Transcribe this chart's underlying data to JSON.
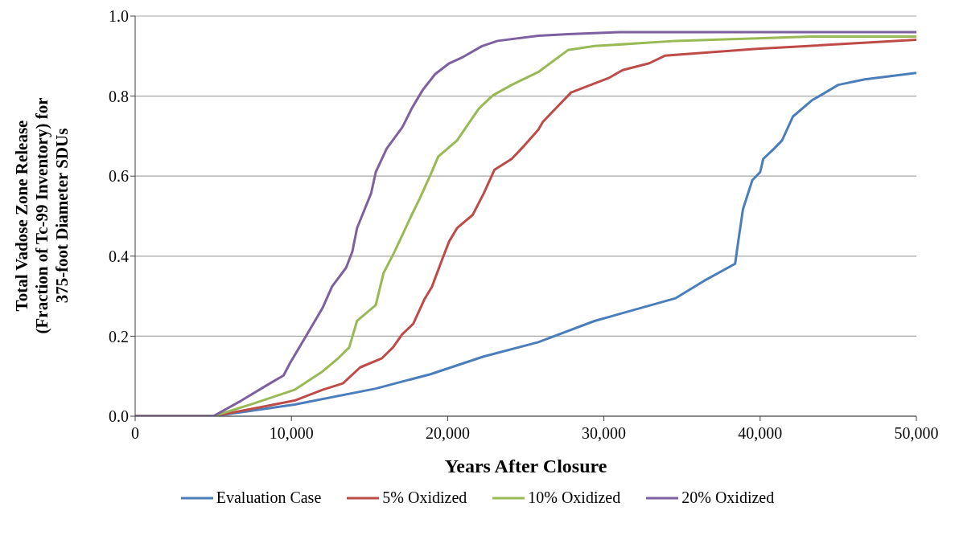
{
  "chart_data": {
    "type": "line",
    "xlabel": "Years After Closure",
    "ylabel": "Total Vadose Zone Release\n(Fraction of Tc-99 Inventory) for\n375-foot Diameter SDUs",
    "xlim": [
      0,
      50000
    ],
    "xticks": [
      0,
      {
        "value": 10000,
        "label": "10,000"
      },
      {
        "value": 20000,
        "label": "20,000"
      },
      {
        "value": 30000,
        "label": "30,000"
      },
      {
        "value": 40000,
        "label": "40,000"
      },
      {
        "value": 50000,
        "label": "50,000"
      }
    ],
    "ylim": [
      0,
      1
    ],
    "yticks": [
      {
        "value": 0,
        "label": "0.0"
      },
      {
        "value": 0.2,
        "label": "0.2"
      },
      {
        "value": 0.4,
        "label": "0.4"
      },
      {
        "value": 0.6,
        "label": "0.6"
      },
      {
        "value": 0.8,
        "label": "0.8"
      },
      {
        "value": 1,
        "label": "1.0"
      }
    ],
    "grid": "y",
    "legend": "bottom",
    "marker": "none",
    "line_style": "solid",
    "series": [
      {
        "name": "Evaluation Case",
        "color": "#4a7ebb",
        "x": [
          0,
          5000,
          10200,
          15400,
          18900,
          22300,
          25800,
          29400,
          34600,
          36400,
          38400,
          38600,
          38900,
          39500,
          40000,
          40200,
          40900,
          41400,
          42100,
          43300,
          45000,
          46700,
          50000
        ],
        "values": [
          0,
          0,
          0.029,
          0.069,
          0.105,
          0.149,
          0.185,
          0.238,
          0.295,
          0.338,
          0.381,
          0.437,
          0.517,
          0.59,
          0.61,
          0.643,
          0.669,
          0.689,
          0.749,
          0.789,
          0.828,
          0.842,
          0.858
        ]
      },
      {
        "name": "5% Oxidized",
        "color": "#be4b48",
        "x": [
          0,
          5000,
          8500,
          10200,
          12000,
          13300,
          14400,
          15800,
          16500,
          17100,
          17800,
          18500,
          19000,
          19700,
          20100,
          20600,
          21600,
          22300,
          23000,
          24100,
          24900,
          25800,
          26100,
          27900,
          30300,
          31200,
          32900,
          33900,
          39800,
          50000
        ],
        "values": [
          0,
          0,
          0.026,
          0.039,
          0.066,
          0.082,
          0.122,
          0.145,
          0.172,
          0.205,
          0.231,
          0.291,
          0.324,
          0.397,
          0.437,
          0.47,
          0.503,
          0.556,
          0.616,
          0.643,
          0.676,
          0.716,
          0.736,
          0.809,
          0.845,
          0.865,
          0.882,
          0.901,
          0.918,
          0.941
        ]
      },
      {
        "name": "10% Oxidized",
        "color": "#98b954",
        "x": [
          0,
          5000,
          7600,
          10200,
          12000,
          13000,
          13700,
          14200,
          15400,
          15900,
          16600,
          17700,
          18200,
          18900,
          19400,
          20600,
          21300,
          22000,
          22900,
          24100,
          25800,
          27700,
          29400,
          34600,
          43300,
          50000
        ],
        "values": [
          0,
          0,
          0.032,
          0.066,
          0.112,
          0.145,
          0.172,
          0.238,
          0.278,
          0.358,
          0.411,
          0.503,
          0.543,
          0.603,
          0.649,
          0.689,
          0.729,
          0.769,
          0.802,
          0.828,
          0.86,
          0.915,
          0.925,
          0.938,
          0.949,
          0.949
        ]
      },
      {
        "name": "20% Oxidized",
        "color": "#7d60a0",
        "x": [
          0,
          5000,
          6800,
          8500,
          9500,
          9900,
          10900,
          12000,
          12600,
          13500,
          13900,
          14200,
          15100,
          15400,
          16100,
          17100,
          17700,
          18400,
          19200,
          20100,
          21000,
          22200,
          23200,
          25800,
          27700,
          31100,
          50000
        ],
        "values": [
          0,
          0,
          0.039,
          0.079,
          0.102,
          0.132,
          0.198,
          0.271,
          0.324,
          0.371,
          0.411,
          0.47,
          0.557,
          0.61,
          0.669,
          0.722,
          0.769,
          0.815,
          0.855,
          0.882,
          0.898,
          0.925,
          0.938,
          0.951,
          0.955,
          0.96,
          0.96
        ]
      }
    ]
  }
}
